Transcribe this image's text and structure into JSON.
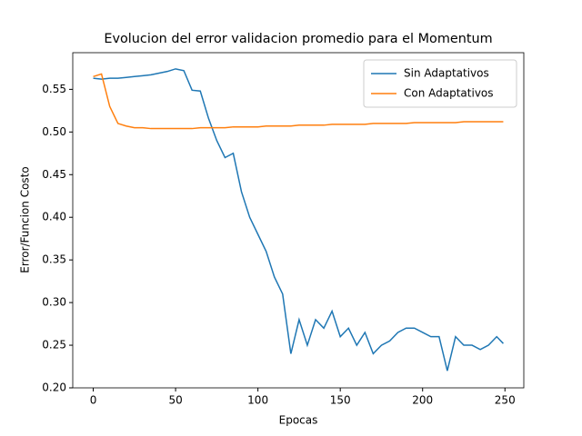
{
  "chart_data": {
    "type": "line",
    "title": "Evolucion del error validacion promedio para el Momentum",
    "x_label": "Epocas",
    "y_label": "Error/Funcion Costo",
    "x": [
      0,
      5,
      10,
      15,
      20,
      25,
      30,
      35,
      40,
      45,
      50,
      55,
      60,
      65,
      70,
      75,
      80,
      85,
      90,
      95,
      100,
      105,
      110,
      115,
      120,
      125,
      130,
      135,
      140,
      145,
      150,
      155,
      160,
      165,
      170,
      175,
      180,
      185,
      190,
      195,
      200,
      205,
      210,
      215,
      220,
      225,
      230,
      235,
      240,
      245,
      249
    ],
    "series": [
      {
        "name": "Sin Adaptativos",
        "color": "#1f77b4",
        "values": [
          0.563,
          0.562,
          0.563,
          0.563,
          0.564,
          0.565,
          0.566,
          0.567,
          0.569,
          0.571,
          0.574,
          0.572,
          0.549,
          0.548,
          0.516,
          0.49,
          0.47,
          0.475,
          0.43,
          0.4,
          0.38,
          0.36,
          0.33,
          0.31,
          0.24,
          0.28,
          0.25,
          0.28,
          0.27,
          0.29,
          0.26,
          0.27,
          0.25,
          0.265,
          0.24,
          0.25,
          0.255,
          0.265,
          0.27,
          0.27,
          0.265,
          0.26,
          0.26,
          0.22,
          0.26,
          0.25,
          0.25,
          0.245,
          0.25,
          0.26,
          0.252
        ]
      },
      {
        "name": "Con Adaptativos",
        "color": "#ff7f0e",
        "values": [
          0.565,
          0.568,
          0.53,
          0.51,
          0.507,
          0.505,
          0.505,
          0.504,
          0.504,
          0.504,
          0.504,
          0.504,
          0.504,
          0.505,
          0.505,
          0.505,
          0.505,
          0.506,
          0.506,
          0.506,
          0.506,
          0.507,
          0.507,
          0.507,
          0.507,
          0.508,
          0.508,
          0.508,
          0.508,
          0.509,
          0.509,
          0.509,
          0.509,
          0.509,
          0.51,
          0.51,
          0.51,
          0.51,
          0.51,
          0.511,
          0.511,
          0.511,
          0.511,
          0.511,
          0.511,
          0.512,
          0.512,
          0.512,
          0.512,
          0.512,
          0.512
        ]
      }
    ],
    "xlim": [
      -12.45,
      261.45
    ],
    "xticks": [
      0,
      50,
      100,
      150,
      200,
      250
    ],
    "ylim": [
      0.2,
      0.593
    ],
    "yticks": [
      {
        "value": 0.2,
        "label": "0.20"
      },
      0.25,
      {
        "value": 0.3,
        "label": "0.30"
      },
      0.35,
      {
        "value": 0.4,
        "label": "0.40"
      },
      0.45,
      {
        "value": 0.5,
        "label": "0.50"
      },
      0.55
    ],
    "legend": "upper right"
  }
}
